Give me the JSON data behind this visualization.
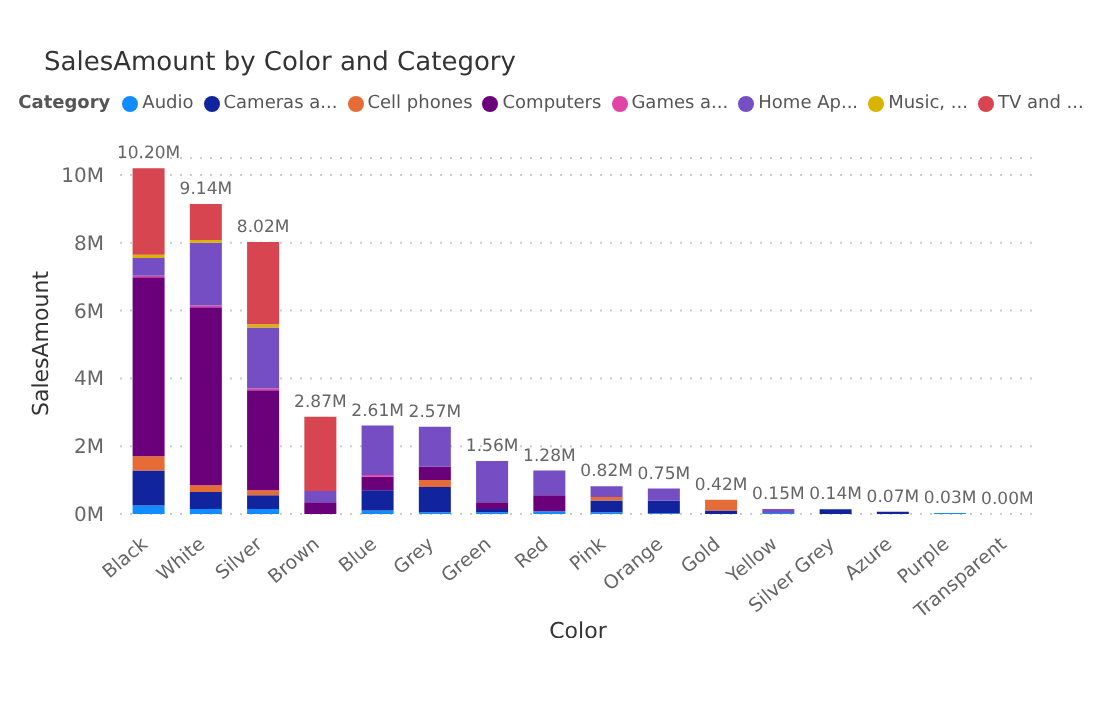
{
  "chart_data": {
    "type": "bar",
    "title": "SalesAmount by Color and Category",
    "xlabel": "Color",
    "ylabel": "SalesAmount",
    "legend_title": "Category",
    "legend": "top",
    "stacked": true,
    "grid": "y",
    "categories": [
      "Black",
      "White",
      "Silver",
      "Brown",
      "Blue",
      "Grey",
      "Green",
      "Red",
      "Pink",
      "Orange",
      "Gold",
      "Yellow",
      "Silver Grey",
      "Azure",
      "Purple",
      "Transparent"
    ],
    "ylim": [
      0,
      10.5
    ],
    "yticks": [
      {
        "value": 0,
        "label": "0M"
      },
      {
        "value": 2,
        "label": "2M"
      },
      {
        "value": 4,
        "label": "4M"
      },
      {
        "value": 6,
        "label": "6M"
      },
      {
        "value": 8,
        "label": "8M"
      },
      {
        "value": 10,
        "label": "10M"
      }
    ],
    "series": [
      {
        "name": "Audio",
        "color": "#118dff",
        "values": [
          0.25,
          0.15,
          0.15,
          0,
          0.1,
          0.05,
          0.05,
          0.08,
          0.05,
          0.02,
          0,
          0.03,
          0,
          0,
          0.03,
          0
        ]
      },
      {
        "name": "Cameras a...",
        "color": "#12239e",
        "values": [
          1.03,
          0.5,
          0.4,
          0,
          0.6,
          0.75,
          0.1,
          0,
          0.35,
          0.38,
          0.1,
          0,
          0.14,
          0.07,
          0,
          0
        ]
      },
      {
        "name": "Cell phones",
        "color": "#e66c37",
        "values": [
          0.42,
          0.2,
          0.15,
          0,
          0,
          0.2,
          0,
          0,
          0.1,
          0,
          0.32,
          0,
          0,
          0,
          0,
          0
        ]
      },
      {
        "name": "Computers",
        "color": "#6b007b",
        "values": [
          5.28,
          5.25,
          2.95,
          0.35,
          0.4,
          0.4,
          0.2,
          0.47,
          0,
          0,
          0,
          0,
          0,
          0,
          0,
          0
        ]
      },
      {
        "name": "Games a...",
        "color": "#e044a7",
        "values": [
          0.05,
          0.05,
          0.05,
          0,
          0.05,
          0,
          0,
          0,
          0,
          0,
          0,
          0,
          0,
          0,
          0,
          0
        ]
      },
      {
        "name": "Home Ap...",
        "color": "#744ec2",
        "values": [
          0.52,
          1.85,
          1.8,
          0.33,
          1.46,
          1.17,
          1.21,
          0.73,
          0.32,
          0.35,
          0,
          0.12,
          0,
          0,
          0,
          0
        ]
      },
      {
        "name": "Music, ...",
        "color": "#d9b300",
        "values": [
          0.1,
          0.08,
          0.1,
          0,
          0,
          0,
          0,
          0,
          0,
          0,
          0,
          0,
          0,
          0,
          0,
          0
        ]
      },
      {
        "name": "TV and ...",
        "color": "#d64550",
        "values": [
          2.55,
          1.06,
          2.42,
          2.19,
          0,
          0,
          0,
          0,
          0,
          0,
          0,
          0,
          0,
          0,
          0,
          0
        ]
      }
    ],
    "totals": [
      "10.20M",
      "9.14M",
      "8.02M",
      "2.87M",
      "2.61M",
      "2.57M",
      "1.56M",
      "1.28M",
      "0.82M",
      "0.75M",
      "0.42M",
      "0.15M",
      "0.14M",
      "0.07M",
      "0.03M",
      "0.00M"
    ]
  }
}
